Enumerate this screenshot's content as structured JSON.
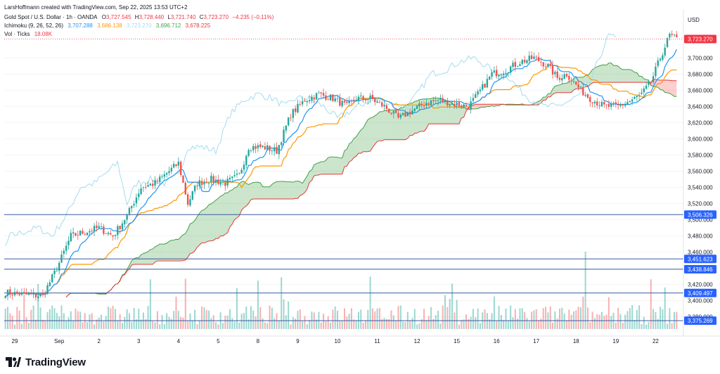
{
  "header": {
    "credit": "LarsHoffmann created with TradingView.com, Sep 22, 2025 13:53 UTC+2",
    "symbol": "Gold Spot / U.S. Dollar · 1h · OANDA",
    "ohlc": {
      "o_label": "O",
      "o_value": "3,727.545",
      "h_label": "H",
      "h_value": "3,728.440",
      "l_label": "L",
      "l_value": "3,721.740",
      "c_label": "C",
      "c_value": "3,723.270",
      "change": "−4.235 (−0.11%)"
    },
    "ichimoku": {
      "label": "Ichimoku (9, 26, 52, 26)",
      "values": [
        "3,707.288",
        "3,686.138",
        "3,723.270",
        "3,696.712",
        "3,678.225"
      ]
    },
    "volume": {
      "label": "Vol · Ticks",
      "value": "18.08K"
    }
  },
  "axis_currency": "USD",
  "brand": {
    "name": "TradingView"
  },
  "colors": {
    "up": "#26a69a",
    "down": "#ef5350",
    "tenkan": "#2196f3",
    "kijun": "#ff9800",
    "chikou": "#a5dcf0",
    "spanA": "#43a047",
    "spanB": "#e53935",
    "cloud_bull": "#43a047",
    "cloud_bear": "#ef5350",
    "hline": "#3a5ba0",
    "price_label": "#f23645",
    "hline_label": "#2962ff"
  },
  "chart_data": {
    "type": "candlestick",
    "y_axis": {
      "range": [
        3365,
        3735
      ],
      "ticks": [
        "3,380.000",
        "3,400.000",
        "3,420.000",
        "3,440.000",
        "3,460.000",
        "3,480.000",
        "3,500.000",
        "3,520.000",
        "3,540.000",
        "3,560.000",
        "3,580.000",
        "3,600.000",
        "3,620.000",
        "3,640.000",
        "3,660.000",
        "3,680.000",
        "3,700.000"
      ],
      "tick_values": [
        3380,
        3400,
        3420,
        3440,
        3460,
        3480,
        3500,
        3520,
        3540,
        3560,
        3580,
        3600,
        3620,
        3640,
        3660,
        3680,
        3700
      ]
    },
    "x_axis": {
      "labels": [
        "29",
        "Sep",
        "2",
        "3",
        "4",
        "5",
        "8",
        "9",
        "10",
        "11",
        "12",
        "15",
        "16",
        "17",
        "18",
        "19",
        "22"
      ],
      "label_bar_index": [
        4,
        23,
        40,
        57,
        74,
        91,
        108,
        125,
        142,
        159,
        176,
        193,
        210,
        227,
        244,
        261,
        278
      ]
    },
    "last_price": {
      "value": 3723.27,
      "label": "3,723.270"
    },
    "horizontal_levels": [
      {
        "value": 3506.326,
        "label": "3,506.326"
      },
      {
        "value": 3451.623,
        "label": "3,451.623"
      },
      {
        "value": 3438.846,
        "label": "3,438.846"
      },
      {
        "value": 3409.497,
        "label": "3,409.497"
      },
      {
        "value": 3375.269,
        "label": "3,375.269"
      }
    ],
    "close_path_anchors": [
      [
        0,
        3410
      ],
      [
        10,
        3407
      ],
      [
        16,
        3406
      ],
      [
        22,
        3440
      ],
      [
        28,
        3480
      ],
      [
        34,
        3485
      ],
      [
        40,
        3490
      ],
      [
        46,
        3480
      ],
      [
        52,
        3505
      ],
      [
        58,
        3540
      ],
      [
        64,
        3545
      ],
      [
        70,
        3560
      ],
      [
        74,
        3570
      ],
      [
        78,
        3520
      ],
      [
        82,
        3545
      ],
      [
        88,
        3550
      ],
      [
        94,
        3545
      ],
      [
        100,
        3555
      ],
      [
        104,
        3590
      ],
      [
        110,
        3590
      ],
      [
        116,
        3585
      ],
      [
        122,
        3630
      ],
      [
        128,
        3648
      ],
      [
        134,
        3655
      ],
      [
        140,
        3650
      ],
      [
        146,
        3640
      ],
      [
        150,
        3650
      ],
      [
        156,
        3650
      ],
      [
        162,
        3640
      ],
      [
        168,
        3625
      ],
      [
        174,
        3635
      ],
      [
        180,
        3645
      ],
      [
        186,
        3648
      ],
      [
        192,
        3643
      ],
      [
        198,
        3640
      ],
      [
        202,
        3655
      ],
      [
        208,
        3680
      ],
      [
        214,
        3685
      ],
      [
        220,
        3695
      ],
      [
        226,
        3700
      ],
      [
        232,
        3690
      ],
      [
        236,
        3675
      ],
      [
        240,
        3680
      ],
      [
        246,
        3660
      ],
      [
        250,
        3650
      ],
      [
        256,
        3640
      ],
      [
        262,
        3640
      ],
      [
        268,
        3648
      ],
      [
        272,
        3655
      ],
      [
        276,
        3670
      ],
      [
        280,
        3700
      ],
      [
        284,
        3728
      ],
      [
        287,
        3723
      ]
    ],
    "series": [
      {
        "name": "Tenkan",
        "values_note": ""
      },
      {
        "name": "Kijun"
      },
      {
        "name": "Chikou"
      },
      {
        "name": "Span A"
      },
      {
        "name": "Span B"
      }
    ],
    "volume_scale": "ticks",
    "bar_count": 288
  }
}
